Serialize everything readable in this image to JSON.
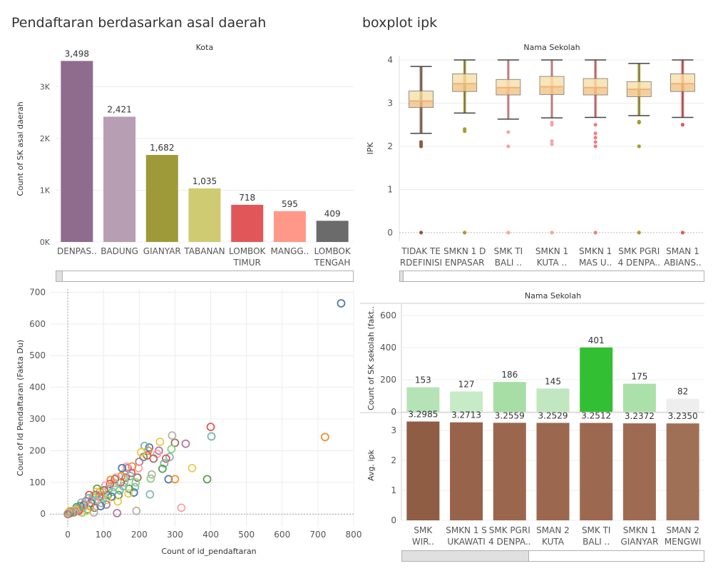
{
  "titles": {
    "left": "Pendaftaran berdasarkan asal daerah",
    "right": "boxplot ipk"
  },
  "colors": {
    "grid": "#ececec",
    "axis_text": "#555555"
  },
  "chart_data": [
    {
      "id": "kota",
      "type": "bar",
      "header": "Kota",
      "ylabel": "Count of SK asal daerah",
      "categories": [
        [
          "DENPAS.."
        ],
        [
          "BADUNG"
        ],
        [
          "GIANYAR"
        ],
        [
          "TABANAN"
        ],
        [
          "LOMBOK",
          "TIMUR"
        ],
        [
          "MANGG.."
        ],
        [
          "LOMBOK",
          "TENGAH"
        ]
      ],
      "values": [
        3498,
        2421,
        1682,
        1035,
        718,
        595,
        409
      ],
      "value_labels": [
        "3,498",
        "2,421",
        "1,682",
        "1,035",
        "718",
        "595",
        "409"
      ],
      "colors": [
        "#8f6c8d",
        "#b79eb3",
        "#9e9a3a",
        "#cfcb73",
        "#e15759",
        "#ff9888",
        "#6b6b6b"
      ],
      "ylim": [
        0,
        3600
      ],
      "yticks": [
        0,
        1000,
        2000,
        3000
      ],
      "ytick_labels": [
        "0K",
        "1K",
        "2K",
        "3K"
      ]
    },
    {
      "id": "boxplot",
      "type": "scatter",
      "header": "Nama Sekolah",
      "ylabel": "IPK",
      "categories": [
        [
          "TIDAK TE",
          "RDEFINISI"
        ],
        [
          "SMKN 1 D",
          "ENPASAR"
        ],
        [
          "SMK TI",
          "BALI .."
        ],
        [
          "SMKN 1",
          "KUTA .."
        ],
        [
          "SMKN 1",
          "MAS U.."
        ],
        [
          "SMK PGRI",
          "4 DENPA.."
        ],
        [
          "SMAN 1",
          "ABIANS.."
        ]
      ],
      "ylim": [
        -0.2,
        4.1
      ],
      "yticks": [
        0,
        1,
        2,
        3,
        4
      ],
      "ytick_labels": [
        "0",
        "1",
        "2",
        "3",
        "4"
      ],
      "boxes": [
        {
          "min": 2.3,
          "q1": 2.9,
          "median": 3.05,
          "q3": 3.28,
          "max": 3.85
        },
        {
          "min": 2.77,
          "q1": 3.27,
          "median": 3.45,
          "q3": 3.68,
          "max": 4.0
        },
        {
          "min": 2.63,
          "q1": 3.19,
          "median": 3.36,
          "q3": 3.55,
          "max": 4.0
        },
        {
          "min": 2.66,
          "q1": 3.2,
          "median": 3.38,
          "q3": 3.62,
          "max": 4.0
        },
        {
          "min": 2.67,
          "q1": 3.19,
          "median": 3.36,
          "q3": 3.57,
          "max": 4.0
        },
        {
          "min": 2.71,
          "q1": 3.15,
          "median": 3.32,
          "q3": 3.5,
          "max": 3.92
        },
        {
          "min": 2.67,
          "q1": 3.27,
          "median": 3.45,
          "q3": 3.68,
          "max": 4.0
        }
      ],
      "point_colors": [
        "#8c5a44",
        "#a89b2c",
        "#f4a6a8",
        "#f4a6a8",
        "#ef7f83",
        "#a89b2c",
        "#e15759"
      ],
      "outliers": [
        [
          0,
          2.0,
          2.05,
          2.1
        ],
        [
          0,
          2.35,
          2.4
        ],
        [
          0,
          2.0,
          2.33
        ],
        [
          0,
          2.05,
          2.12,
          2.5,
          2.55
        ],
        [
          0,
          2.0,
          2.1,
          2.2,
          2.3,
          2.5
        ],
        [
          0,
          2.0,
          2.55,
          2.57
        ],
        [
          0,
          2.5
        ]
      ]
    },
    {
      "id": "scatter",
      "type": "scatter",
      "xlabel": "Count of id_pendaftaran",
      "ylabel": "Count of Id Pendaftaran (Fakta Du)",
      "xlim": [
        -50,
        800
      ],
      "ylim": [
        -40,
        710
      ],
      "xticks": [
        0,
        100,
        200,
        300,
        400,
        500,
        600,
        700,
        800
      ],
      "yticks": [
        0,
        100,
        200,
        300,
        400,
        500,
        600,
        700
      ],
      "palette": [
        "#4e79a7",
        "#f28e2b",
        "#e15759",
        "#76b7b2",
        "#59a14f",
        "#edc948",
        "#b07aa1",
        "#ff9da7",
        "#9c755f",
        "#bab0ac",
        "#8cd17d",
        "#86bcb6"
      ],
      "points": [
        [
          765,
          665
        ],
        [
          720,
          243
        ],
        [
          400,
          275
        ],
        [
          402,
          245
        ],
        [
          390,
          110
        ],
        [
          348,
          145
        ],
        [
          330,
          222
        ],
        [
          318,
          20
        ],
        [
          300,
          225
        ],
        [
          292,
          248
        ],
        [
          290,
          205
        ],
        [
          285,
          180
        ],
        [
          282,
          110
        ],
        [
          300,
          110
        ],
        [
          275,
          175
        ],
        [
          270,
          160
        ],
        [
          265,
          143
        ],
        [
          258,
          228
        ],
        [
          255,
          200
        ],
        [
          250,
          190
        ],
        [
          240,
          175
        ],
        [
          235,
          125
        ],
        [
          232,
          112
        ],
        [
          230,
          62
        ],
        [
          228,
          210
        ],
        [
          225,
          200
        ],
        [
          222,
          185
        ],
        [
          215,
          215
        ],
        [
          212,
          180
        ],
        [
          205,
          195
        ],
        [
          200,
          165
        ],
        [
          198,
          145
        ],
        [
          195,
          115
        ],
        [
          192,
          10
        ],
        [
          190,
          100
        ],
        [
          188,
          85
        ],
        [
          185,
          68
        ],
        [
          180,
          150
        ],
        [
          178,
          130
        ],
        [
          175,
          120
        ],
        [
          172,
          80
        ],
        [
          170,
          65
        ],
        [
          168,
          145
        ],
        [
          165,
          150
        ],
        [
          162,
          115
        ],
        [
          160,
          130
        ],
        [
          158,
          100
        ],
        [
          155,
          88
        ],
        [
          152,
          145
        ],
        [
          150,
          120
        ],
        [
          148,
          100
        ],
        [
          145,
          75
        ],
        [
          142,
          60
        ],
        [
          140,
          40
        ],
        [
          138,
          3
        ],
        [
          135,
          115
        ],
        [
          132,
          110
        ],
        [
          130,
          98
        ],
        [
          128,
          85
        ],
        [
          125,
          70
        ],
        [
          122,
          55
        ],
        [
          120,
          108
        ],
        [
          118,
          95
        ],
        [
          115,
          80
        ],
        [
          112,
          60
        ],
        [
          110,
          45
        ],
        [
          108,
          30
        ],
        [
          105,
          90
        ],
        [
          102,
          75
        ],
        [
          100,
          60
        ],
        [
          98,
          50
        ],
        [
          95,
          35
        ],
        [
          92,
          25
        ],
        [
          90,
          70
        ],
        [
          88,
          55
        ],
        [
          85,
          45
        ],
        [
          82,
          80
        ],
        [
          80,
          70
        ],
        [
          78,
          60
        ],
        [
          76,
          40
        ],
        [
          75,
          20
        ],
        [
          73,
          5
        ],
        [
          70,
          55
        ],
        [
          68,
          45
        ],
        [
          65,
          35
        ],
        [
          62,
          25
        ],
        [
          60,
          60
        ],
        [
          58,
          50
        ],
        [
          55,
          15
        ],
        [
          52,
          10
        ],
        [
          50,
          40
        ],
        [
          48,
          30
        ],
        [
          45,
          28
        ],
        [
          42,
          20
        ],
        [
          40,
          5
        ],
        [
          38,
          36
        ],
        [
          35,
          25
        ],
        [
          32,
          15
        ],
        [
          30,
          10
        ],
        [
          28,
          18
        ],
        [
          25,
          22
        ],
        [
          22,
          12
        ],
        [
          20,
          8
        ],
        [
          18,
          6
        ],
        [
          15,
          5
        ],
        [
          12,
          10
        ],
        [
          10,
          4
        ],
        [
          8,
          6
        ],
        [
          6,
          3
        ],
        [
          5,
          8
        ],
        [
          4,
          2
        ],
        [
          3,
          5
        ],
        [
          2,
          1
        ],
        [
          1,
          3
        ],
        [
          0,
          0
        ]
      ]
    },
    {
      "id": "sekolah",
      "type": "bar",
      "header": "Nama Sekolah",
      "categories": [
        [
          "SMK",
          "WIR.."
        ],
        [
          "SMKN 1 S",
          "UKAWATI"
        ],
        [
          "SMK PGRI",
          "4 DENPA.."
        ],
        [
          "SMAN 2",
          "KUTA"
        ],
        [
          "SMK TI",
          "BALI .."
        ],
        [
          "SMKN 1",
          "GIANYAR"
        ],
        [
          "SMAN 2",
          "MENGWI"
        ]
      ],
      "series": [
        {
          "name": "Count of SK sekolah (fakt..",
          "values": [
            153,
            127,
            186,
            145,
            401,
            175,
            82
          ],
          "value_labels": [
            "153",
            "127",
            "186",
            "145",
            "401",
            "175",
            "82"
          ],
          "colors": [
            "#b6e3b6",
            "#c7ebc7",
            "#a6dea6",
            "#c1e7c1",
            "#33bf33",
            "#abe0ab",
            "#eeeeee"
          ],
          "ylim": [
            0,
            640
          ],
          "yticks": [
            0,
            200,
            400,
            600
          ],
          "ytick_labels": [
            "0",
            "200",
            "400",
            "600"
          ]
        },
        {
          "name": "Avg. ipk",
          "values": [
            3.2985,
            3.2713,
            3.2559,
            3.2529,
            3.2512,
            3.2372,
            3.235
          ],
          "value_labels": [
            "3.2985",
            "3.2713",
            "3.2559",
            "3.2529",
            "3.2512",
            "3.2372",
            "3.2350"
          ],
          "colors": [
            "#8f5c44",
            "#97634a",
            "#9a674e",
            "#9b684f",
            "#9c6950",
            "#9e6b52",
            "#a07056"
          ],
          "ylim": [
            0,
            3.55
          ],
          "yticks": [
            0,
            1,
            2,
            3
          ],
          "ytick_labels": [
            "0",
            "1",
            "2",
            "3"
          ]
        }
      ]
    }
  ]
}
